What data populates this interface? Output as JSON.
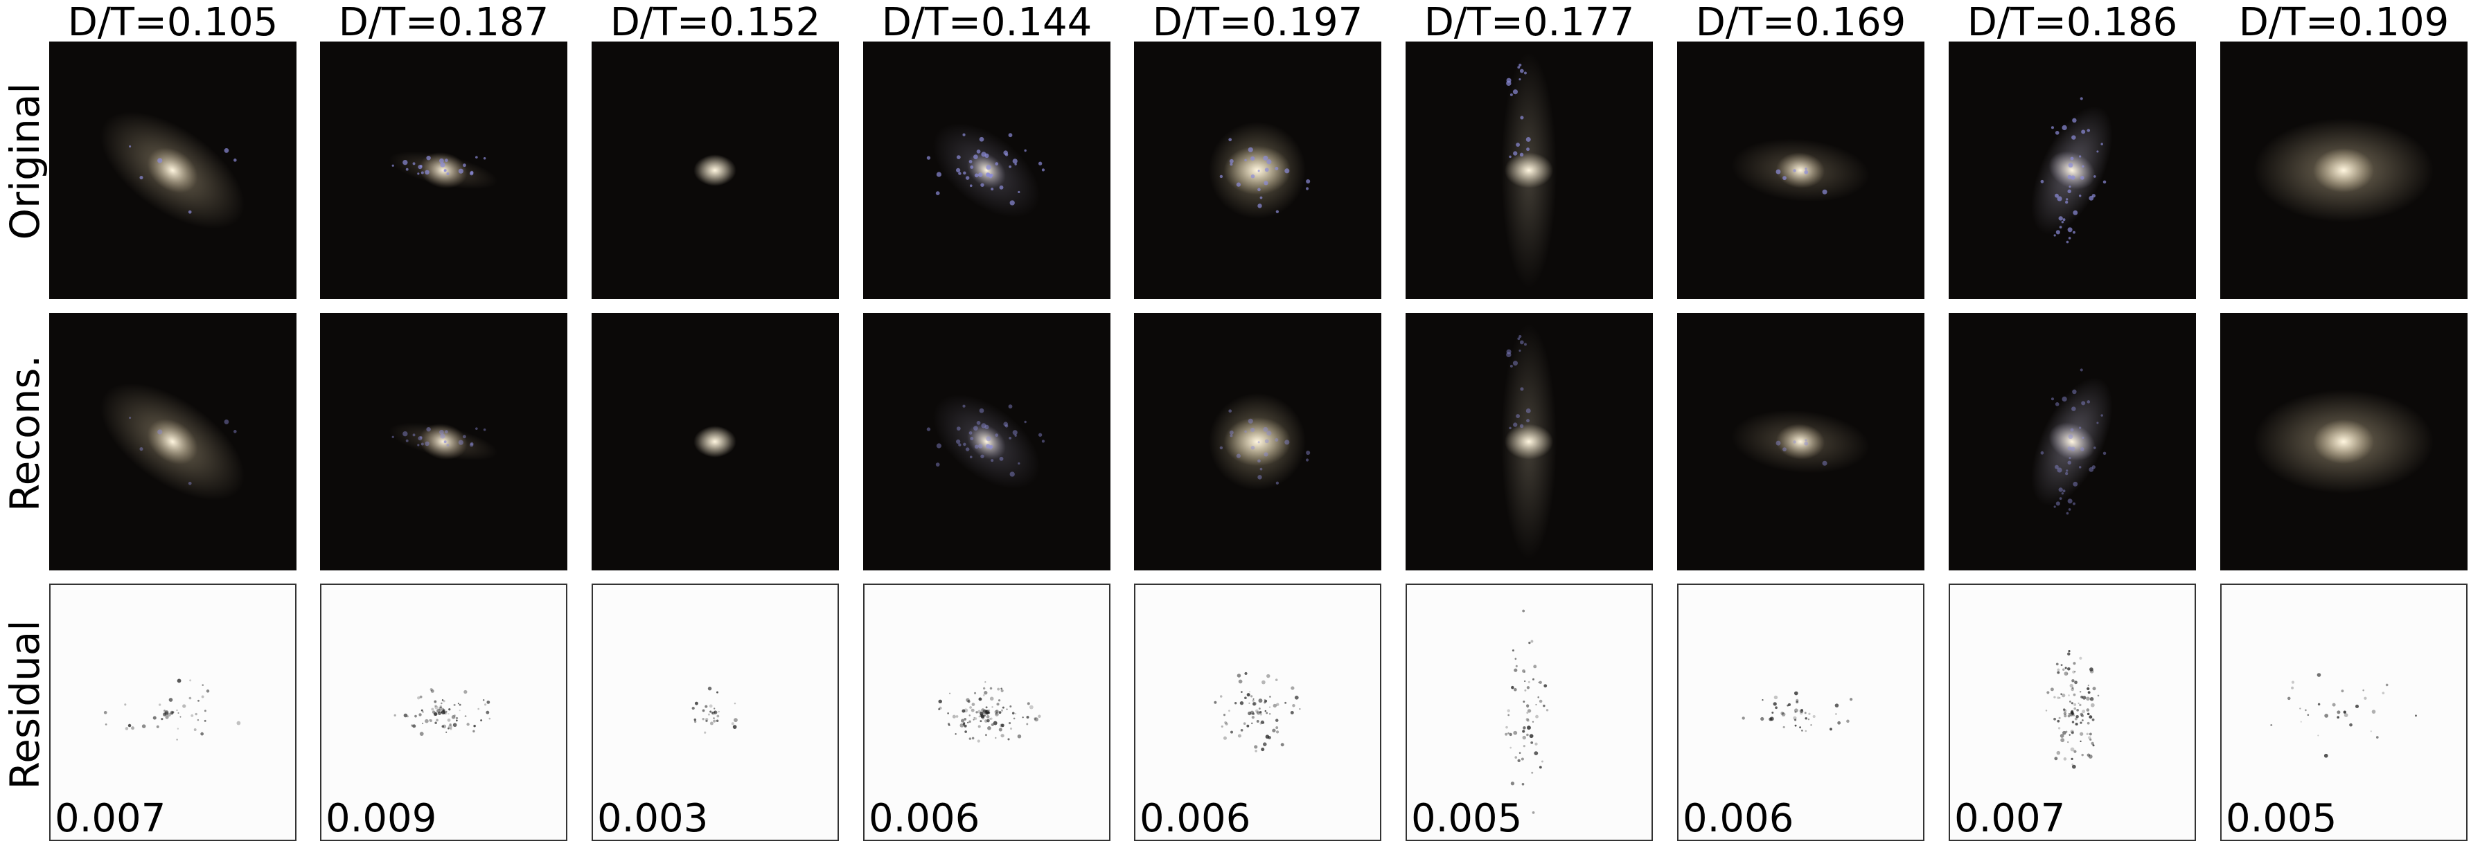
{
  "row_labels": {
    "original": "Original",
    "reconstruction": "Recons.",
    "residual": "Residual"
  },
  "columns": [
    {
      "title": "D/T=0.105",
      "residual": "0.007",
      "galaxy": {
        "shape": "inclined-disk",
        "glow": "#b8a98a",
        "clumps": "sparse-blue"
      }
    },
    {
      "title": "D/T=0.187",
      "residual": "0.009",
      "galaxy": {
        "shape": "edge-on-bar",
        "glow": "#a8967a",
        "clumps": "scattered-blue"
      }
    },
    {
      "title": "D/T=0.152",
      "residual": "0.003",
      "galaxy": {
        "shape": "compact-core",
        "glow": "#e8dcc0",
        "clumps": "none"
      }
    },
    {
      "title": "D/T=0.144",
      "residual": "0.006",
      "galaxy": {
        "shape": "spiral-disk",
        "glow": "#9a96b0",
        "clumps": "dense-blue"
      }
    },
    {
      "title": "D/T=0.197",
      "residual": "0.006",
      "galaxy": {
        "shape": "bright-core-halo",
        "glow": "#d8c8a0",
        "clumps": "scattered-blue"
      }
    },
    {
      "title": "D/T=0.177",
      "residual": "0.005",
      "galaxy": {
        "shape": "core-with-streak",
        "glow": "#efe2c4",
        "clumps": "streak-blue"
      }
    },
    {
      "title": "D/T=0.169",
      "residual": "0.006",
      "galaxy": {
        "shape": "core-with-faint-disk",
        "glow": "#cdbb98",
        "clumps": "sparse-blue"
      }
    },
    {
      "title": "D/T=0.186",
      "residual": "0.007",
      "galaxy": {
        "shape": "tilted-spiral",
        "glow": "#b8b4cc",
        "clumps": "dense-blue"
      }
    },
    {
      "title": "D/T=0.109",
      "residual": "0.005",
      "galaxy": {
        "shape": "elliptical-glow",
        "glow": "#e4d2ac",
        "clumps": "none"
      }
    }
  ],
  "colors": {
    "image_background": "#0b0908",
    "residual_background": "#fcfcfc",
    "clump_blue": "#8c8cd8",
    "core": "#fff6e0"
  }
}
